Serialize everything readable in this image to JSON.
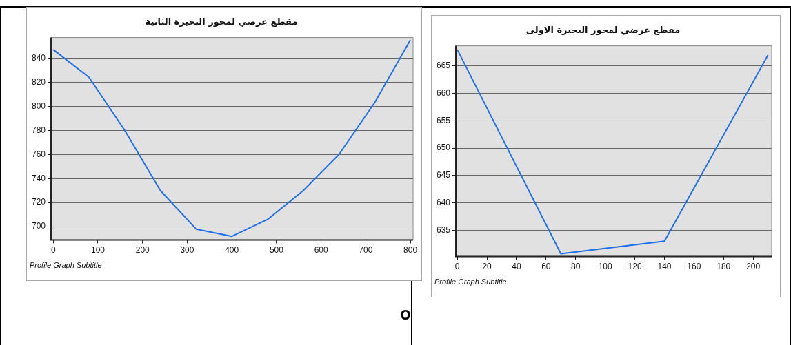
{
  "chart_data": [
    {
      "type": "line",
      "title": "مقطع عرضي لمحور البحيرة الثانية",
      "subtitle": "Profile Graph Subtitle",
      "annotations": [
        "o"
      ],
      "x": [
        0,
        80,
        160,
        240,
        320,
        400,
        480,
        560,
        640,
        720,
        800
      ],
      "series": [
        {
          "color": "#1f6fe8",
          "values": [
            847,
            824,
            780,
            730,
            698,
            692,
            706,
            730,
            760,
            803,
            855
          ]
        }
      ],
      "xlim": [
        -5,
        806
      ],
      "xticks": [
        0,
        100,
        200,
        300,
        400,
        500,
        600,
        700,
        800
      ],
      "ylim": [
        689,
        857
      ],
      "yticks": [
        700,
        720,
        740,
        760,
        780,
        800,
        820,
        840
      ],
      "grid": "y",
      "legend": false,
      "marker": "none",
      "line_style": "solid"
    },
    {
      "type": "line",
      "title": "مقطع عرضي لمحور البحيرة الاولى",
      "subtitle": "Profile Graph Subtitle",
      "x": [
        0,
        70,
        140,
        210
      ],
      "series": [
        {
          "color": "#1f6fe8",
          "values": [
            668,
            630.7,
            633,
            667
          ]
        }
      ],
      "xlim": [
        -1,
        212.5
      ],
      "xticks": [
        0,
        20,
        40,
        60,
        80,
        100,
        120,
        140,
        160,
        180,
        200
      ],
      "ylim": [
        630.2,
        668.7
      ],
      "yticks": [
        635,
        640,
        645,
        650,
        655,
        660,
        665
      ],
      "grid": "y",
      "legend": false,
      "marker": "none",
      "line_style": "solid"
    }
  ]
}
